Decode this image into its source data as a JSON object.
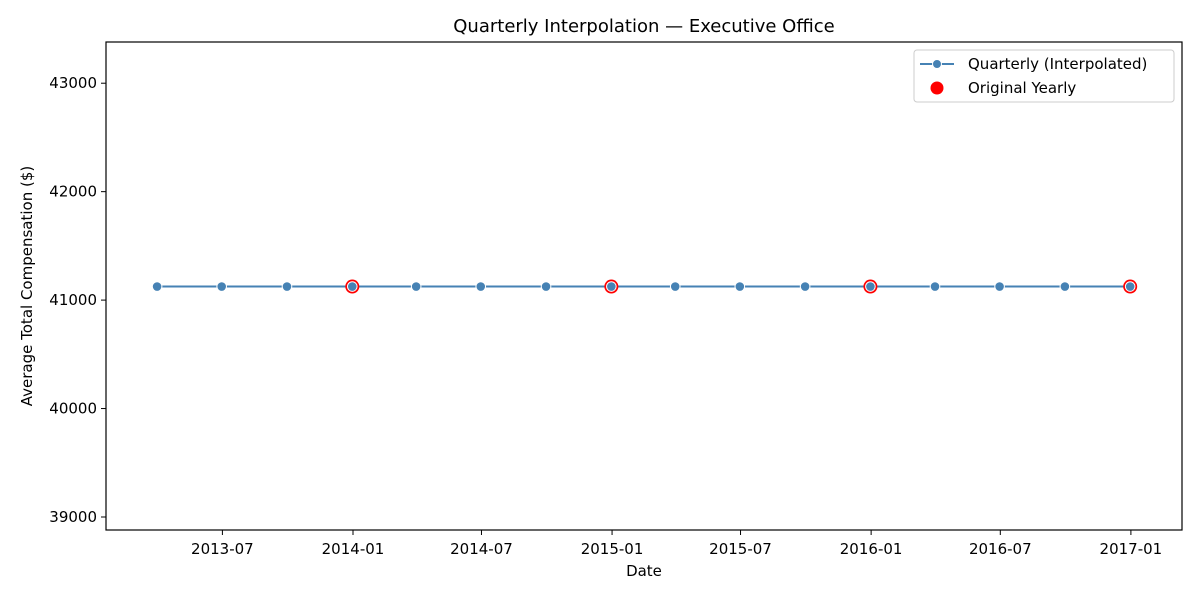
{
  "chart_data": {
    "type": "line",
    "title": "Quarterly Interpolation — Executive Office",
    "xlabel": "Date",
    "ylabel": "Average Total Compensation ($)",
    "x_tick_labels": [
      "2013-07",
      "2014-01",
      "2014-07",
      "2015-01",
      "2015-07",
      "2016-01",
      "2016-07",
      "2017-01"
    ],
    "y_tick_labels": [
      "39000",
      "40000",
      "41000",
      "42000",
      "43000"
    ],
    "ylim": [
      38880,
      43380
    ],
    "xlim": [
      "2013-01-18",
      "2017-03-14"
    ],
    "grid": false,
    "legend_position": "top-right",
    "series": [
      {
        "name": "Quarterly (Interpolated)",
        "color": "#4682b4",
        "style": "line-with-markers",
        "x": [
          "2013-03-31",
          "2013-06-30",
          "2013-09-30",
          "2013-12-31",
          "2014-03-31",
          "2014-06-30",
          "2014-09-30",
          "2014-12-31",
          "2015-03-31",
          "2015-06-30",
          "2015-09-30",
          "2015-12-31",
          "2016-03-31",
          "2016-06-30",
          "2016-09-30",
          "2016-12-31"
        ],
        "y": [
          41125,
          41125,
          41125,
          41125,
          41125,
          41125,
          41125,
          41125,
          41125,
          41125,
          41125,
          41125,
          41125,
          41125,
          41125,
          41125
        ]
      },
      {
        "name": "Original Yearly",
        "color": "#ff0000",
        "style": "scatter",
        "x": [
          "2013-12-31",
          "2014-12-31",
          "2015-12-31",
          "2016-12-31"
        ],
        "y": [
          41125,
          41125,
          41125,
          41125
        ]
      }
    ]
  }
}
